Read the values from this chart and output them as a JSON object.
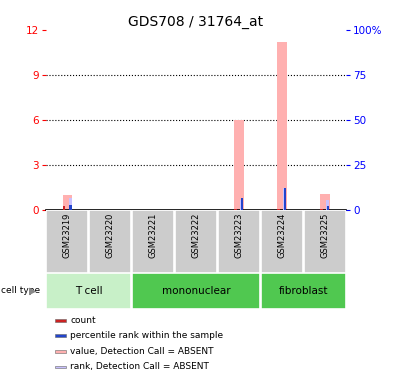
{
  "title": "GDS708 / 31764_at",
  "samples": [
    "GSM23219",
    "GSM23220",
    "GSM23221",
    "GSM23222",
    "GSM23223",
    "GSM23224",
    "GSM23225"
  ],
  "cell_types": [
    {
      "label": "T cell",
      "start": 0,
      "end": 1,
      "color": "#c8f0c8"
    },
    {
      "label": "mononuclear",
      "start": 2,
      "end": 4,
      "color": "#50c850"
    },
    {
      "label": "fibroblast",
      "start": 5,
      "end": 6,
      "color": "#50c850"
    }
  ],
  "value_absent": [
    1.0,
    0.0,
    0.0,
    0.0,
    6.0,
    11.2,
    1.1
  ],
  "rank_absent": [
    0.8,
    0.0,
    0.0,
    0.0,
    0.7,
    1.5,
    0.7
  ],
  "count_red": [
    0.3,
    0.0,
    0.0,
    0.0,
    0.1,
    0.1,
    0.1
  ],
  "rank_blue": [
    0.35,
    0.0,
    0.0,
    0.0,
    0.8,
    1.5,
    0.3
  ],
  "ylim_left": [
    0,
    12
  ],
  "ylim_right": [
    0,
    100
  ],
  "yticks_left": [
    0,
    3,
    6,
    9,
    12
  ],
  "yticks_right": [
    0,
    25,
    50,
    75,
    100
  ],
  "ytick_labels_right": [
    "0",
    "25",
    "50",
    "75",
    "100%"
  ],
  "color_absent_bar": "#ffb0b0",
  "color_rank_absent": "#c8c0ff",
  "color_count": "#cc2222",
  "color_rank": "#2244cc",
  "color_sample_bg": "#cccccc",
  "color_cell_type_light": "#c8f0c8",
  "color_cell_type_dark": "#50c850",
  "legend_items": [
    {
      "color": "#cc2222",
      "label": "count"
    },
    {
      "color": "#2244cc",
      "label": "percentile rank within the sample"
    },
    {
      "color": "#ffb0b0",
      "label": "value, Detection Call = ABSENT"
    },
    {
      "color": "#c8c0ff",
      "label": "rank, Detection Call = ABSENT"
    }
  ]
}
